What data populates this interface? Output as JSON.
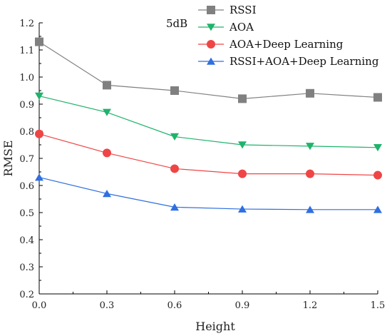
{
  "chart_data": {
    "type": "line",
    "title": "",
    "annotation": "5dB",
    "xlabel": "Height",
    "ylabel": "RMSE",
    "xlim": [
      0,
      1.5
    ],
    "ylim": [
      0.2,
      1.2
    ],
    "x": [
      0,
      0.3,
      0.6,
      0.9,
      1.2,
      1.5
    ],
    "x_tick_labels": [
      "0.0",
      "0.3",
      "0.6",
      "0.9",
      "1.2",
      "1.5"
    ],
    "y_ticks": [
      0.2,
      0.3,
      0.4,
      0.5,
      0.6,
      0.7,
      0.8,
      0.9,
      1.0,
      1.1,
      1.2
    ],
    "y_tick_labels": [
      "0.2",
      "0.3",
      "0.4",
      "0.5",
      "0.6",
      "0.7",
      "0.8",
      "0.9",
      "1.0",
      "1.1",
      "1.2"
    ],
    "grid": false,
    "legend_position": "top-right",
    "series": [
      {
        "name": "RSSI",
        "color": "#808080",
        "marker": "square",
        "values": [
          1.13,
          0.97,
          0.95,
          0.92,
          0.94,
          0.925
        ]
      },
      {
        "name": "AOA",
        "color": "#1fb36b",
        "marker": "triangle-down",
        "values": [
          0.93,
          0.87,
          0.78,
          0.75,
          0.745,
          0.74
        ]
      },
      {
        "name": "AOA+Deep Learning",
        "color": "#ef4545",
        "marker": "circle",
        "values": [
          0.79,
          0.72,
          0.662,
          0.643,
          0.643,
          0.638
        ]
      },
      {
        "name": "RSSI+AOA+Deep Learning",
        "color": "#2f6fdf",
        "marker": "triangle-up",
        "values": [
          0.63,
          0.57,
          0.52,
          0.513,
          0.511,
          0.511
        ]
      }
    ]
  }
}
